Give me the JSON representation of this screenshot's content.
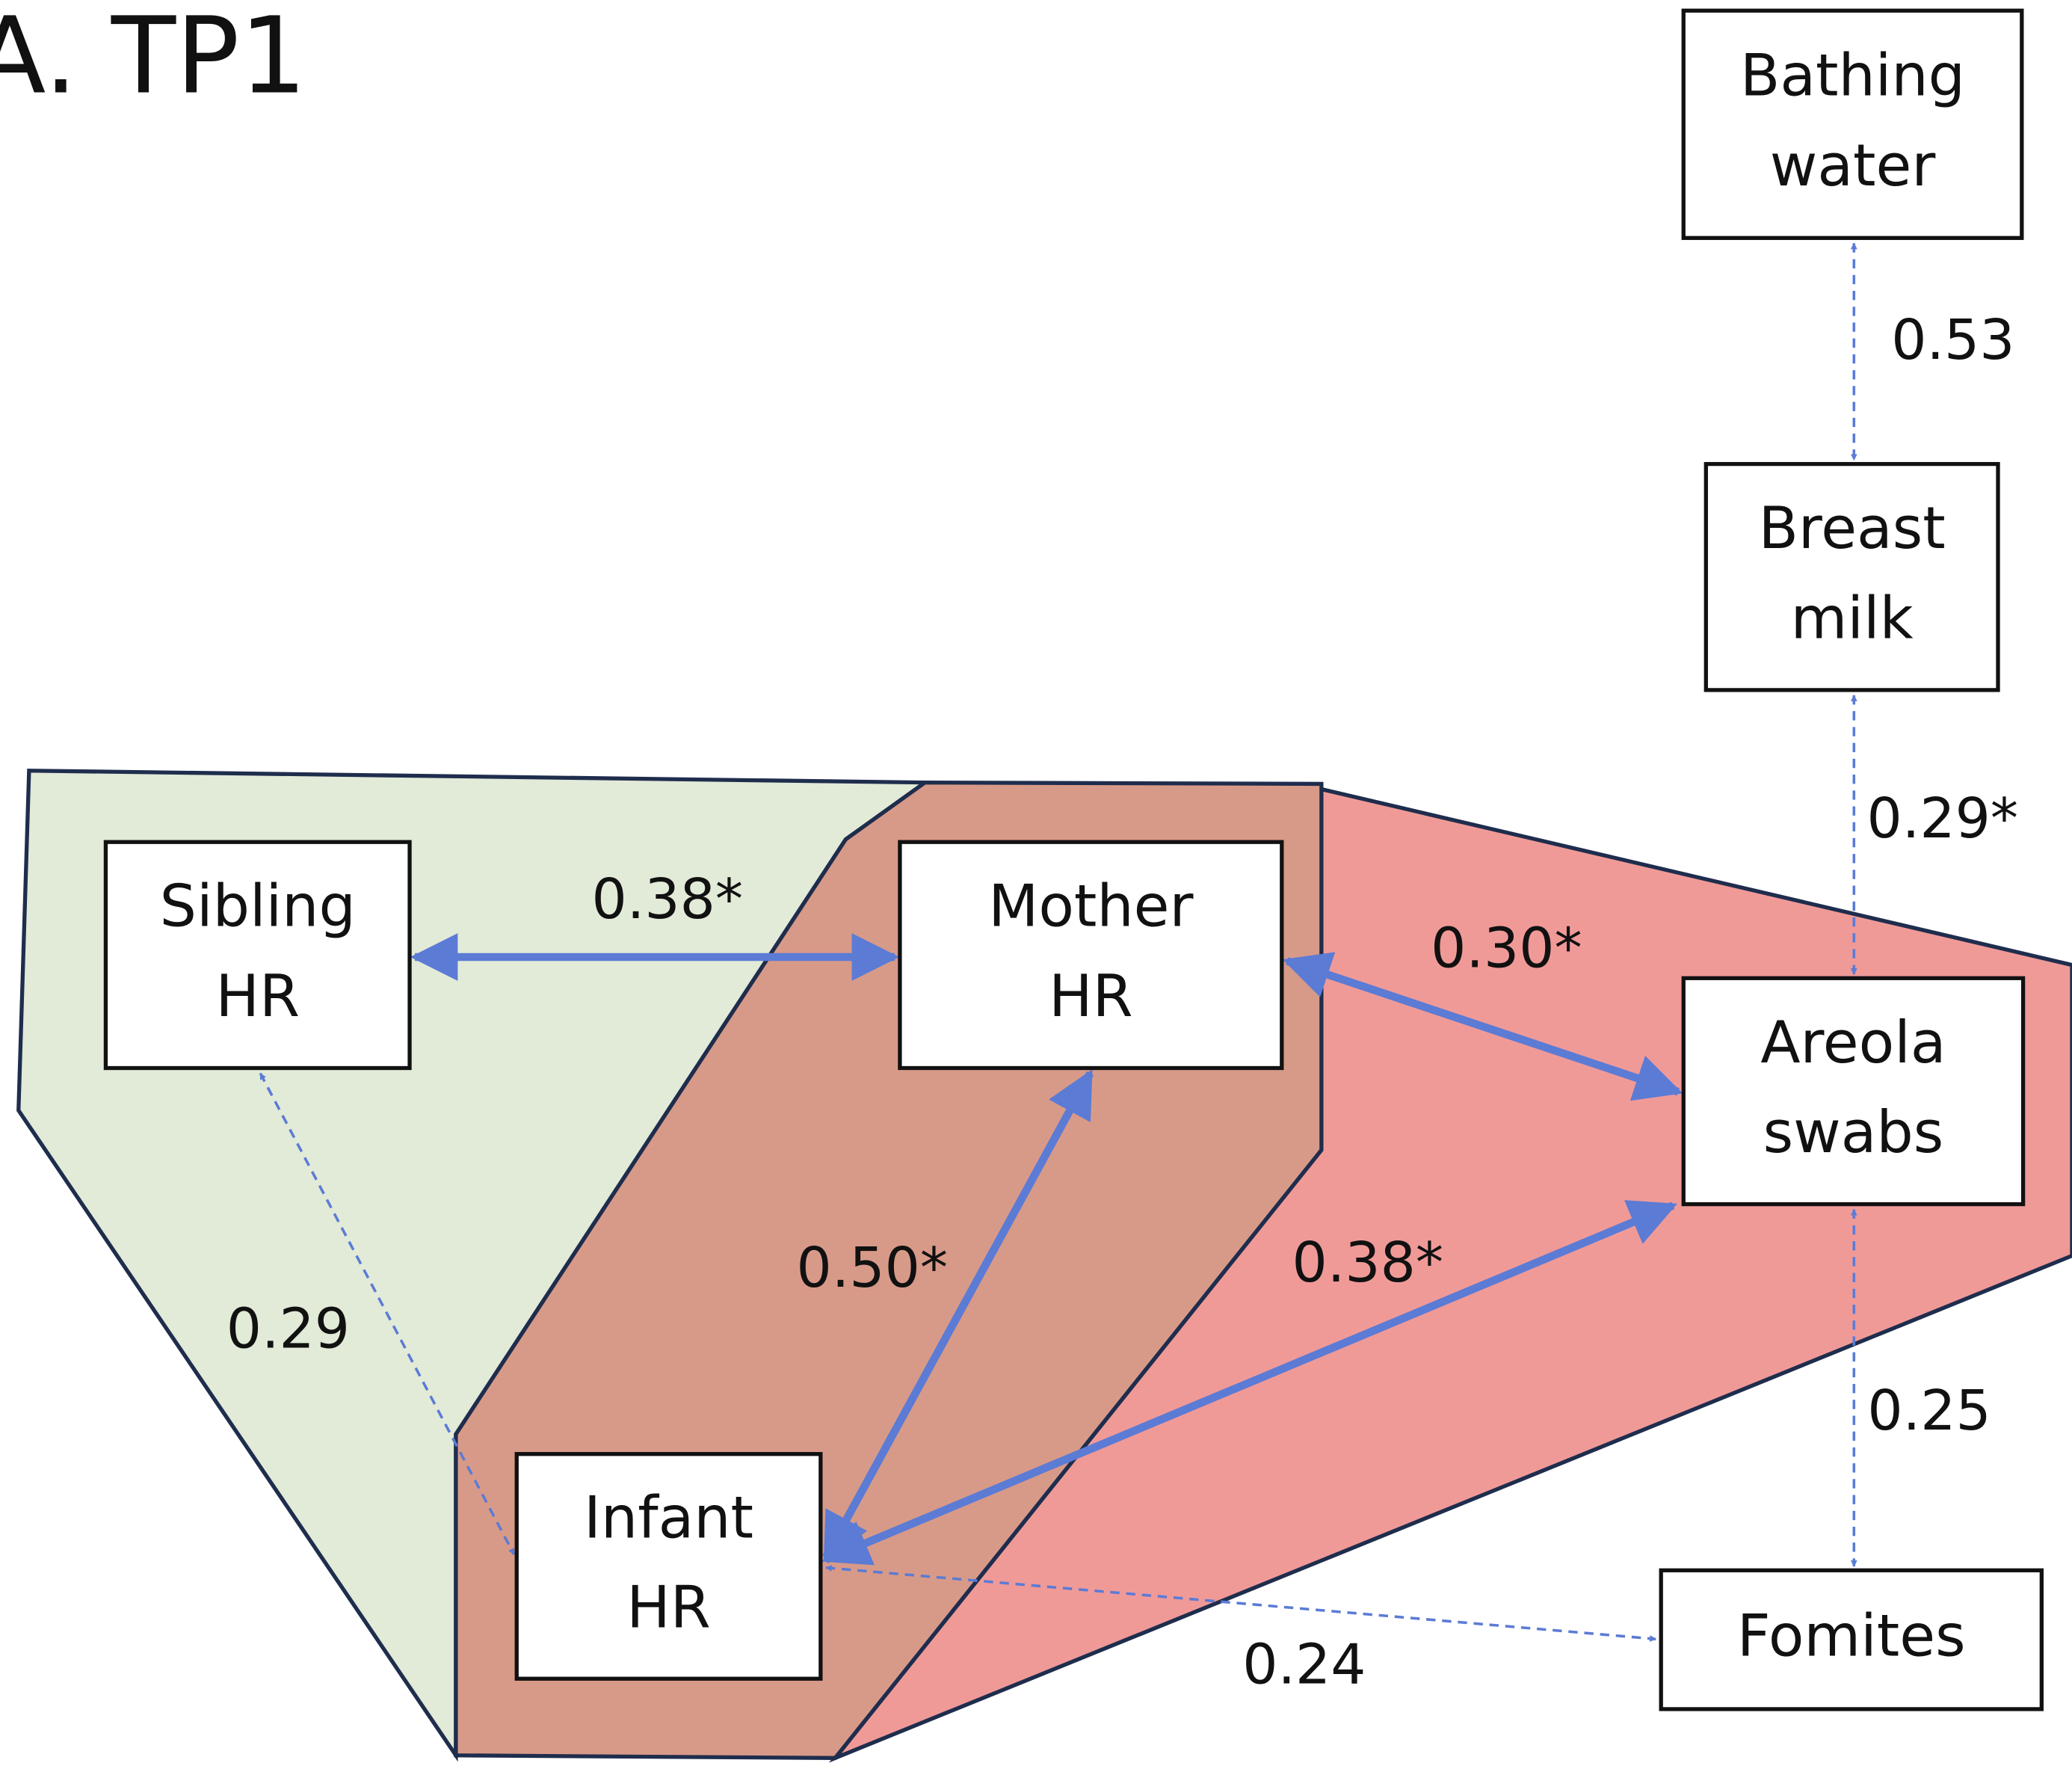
{
  "title": "A. TP1",
  "nodes": [
    {
      "label": [
        "Bathing",
        "water"
      ]
    },
    {
      "label": [
        "Breast",
        "milk"
      ]
    },
    {
      "label": [
        "Sibling",
        "HR"
      ]
    },
    {
      "label": [
        "Mother",
        "HR"
      ]
    },
    {
      "label": [
        "Areola",
        "swabs"
      ]
    },
    {
      "label": [
        "Infant",
        "HR"
      ]
    },
    {
      "label": [
        "Fomites"
      ]
    }
  ],
  "edges": [
    {
      "label": "0.53"
    },
    {
      "label": "0.29*"
    },
    {
      "label": "0.38*"
    },
    {
      "label": "0.30*"
    },
    {
      "label": "0.50*"
    },
    {
      "label": "0.38*"
    },
    {
      "label": "0.29"
    },
    {
      "label": "0.25"
    },
    {
      "label": "0.24"
    }
  ]
}
